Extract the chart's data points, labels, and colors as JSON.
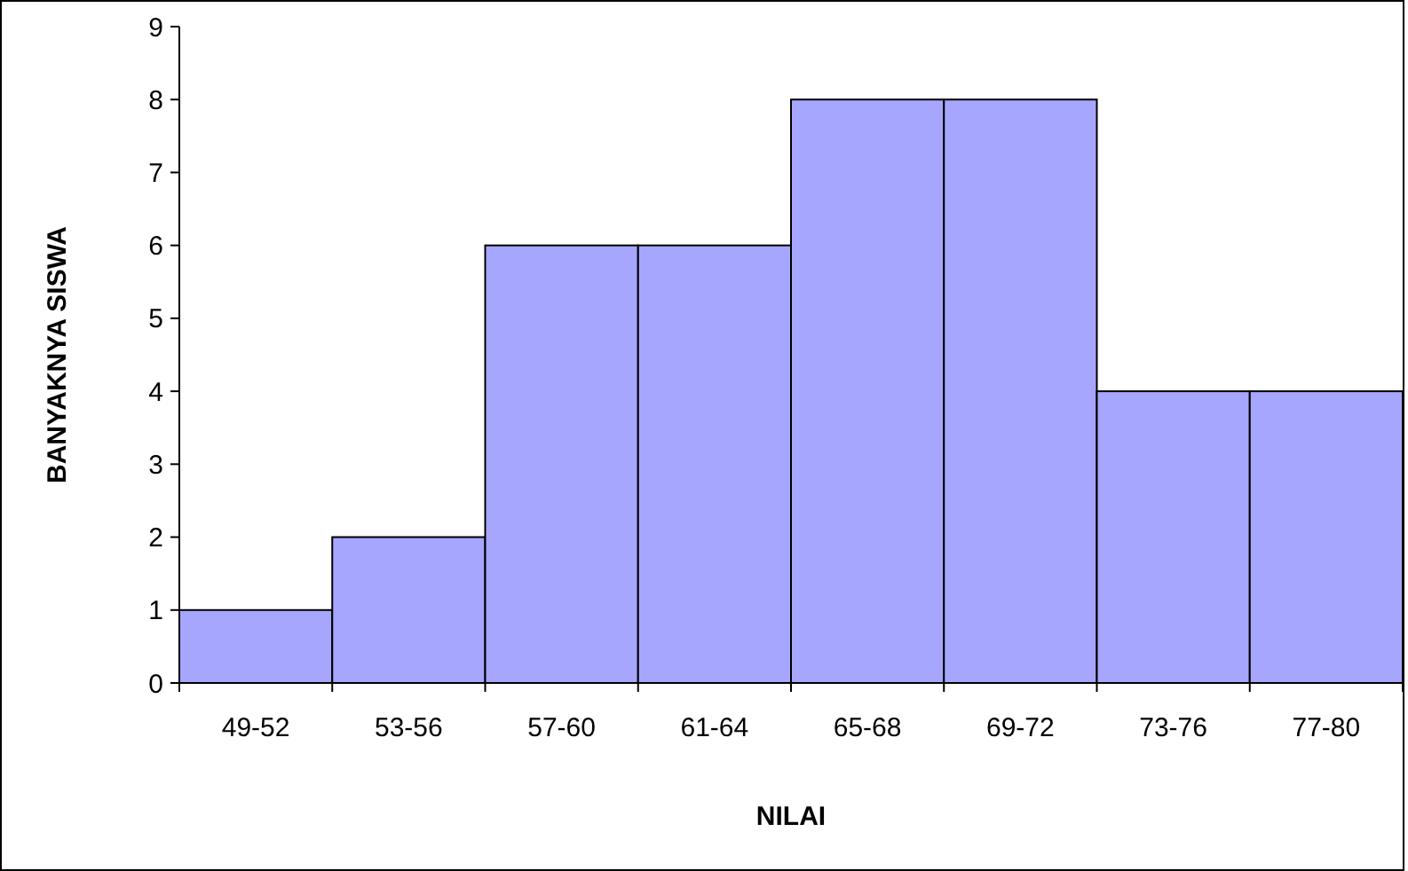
{
  "chart_data": {
    "type": "bar",
    "xlabel": "NILAI",
    "ylabel": "BANYAKNYA SISWA",
    "categories": [
      "49-52",
      "53-56",
      "57-60",
      "61-64",
      "65-68",
      "69-72",
      "73-76",
      "77-80"
    ],
    "values": [
      1,
      2,
      6,
      6,
      8,
      8,
      4,
      4
    ],
    "color": "#a6a6ff",
    "ylim": [
      0,
      9
    ],
    "yticks": [
      0,
      1,
      2,
      3,
      4,
      5,
      6,
      7,
      8,
      9
    ],
    "grid": false
  }
}
